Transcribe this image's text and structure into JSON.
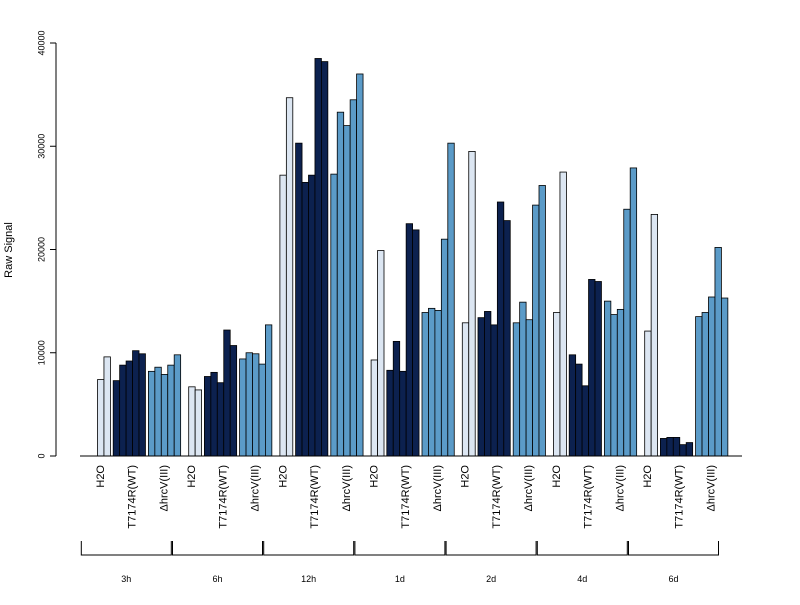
{
  "chart_data": {
    "type": "bar",
    "title": "",
    "xlabel": "",
    "ylabel": "Raw Signal",
    "ylim": [
      0,
      40000
    ],
    "yticks": [
      0,
      10000,
      20000,
      30000,
      40000
    ],
    "grid": false,
    "legend": "none",
    "timepoints": [
      "3h",
      "6h",
      "12h",
      "1d",
      "2d",
      "4d",
      "6d"
    ],
    "treatments": [
      {
        "label": "H2O",
        "color": "#dce6f2"
      },
      {
        "label": "T7174R(WT)",
        "color": "#0c214f"
      },
      {
        "label": "ΔhrcV(III)",
        "color": "#5b9bc8"
      }
    ],
    "groups": [
      {
        "time": "3h",
        "values": [
          [
            7400,
            9600
          ],
          [
            7300,
            8800,
            9200,
            10200,
            9900
          ],
          [
            8200,
            8600,
            7900,
            8800,
            9800
          ]
        ]
      },
      {
        "time": "6h",
        "values": [
          [
            6700,
            6400
          ],
          [
            7700,
            8100,
            7100,
            12200,
            10700
          ],
          [
            9400,
            10000,
            9900,
            8900,
            12700
          ]
        ]
      },
      {
        "time": "12h",
        "values": [
          [
            27200,
            34700
          ],
          [
            30300,
            26500,
            27200,
            38500,
            38200
          ],
          [
            27300,
            33300,
            32000,
            34500,
            37000
          ]
        ]
      },
      {
        "time": "1d",
        "values": [
          [
            9300,
            19900
          ],
          [
            8300,
            11100,
            8200,
            22500,
            21900
          ],
          [
            13900,
            14300,
            14100,
            21000,
            30300
          ]
        ]
      },
      {
        "time": "2d",
        "values": [
          [
            12900,
            29500
          ],
          [
            13400,
            14000,
            12700,
            24600,
            22800
          ],
          [
            12900,
            14900,
            13200,
            24300,
            26200
          ]
        ]
      },
      {
        "time": "4d",
        "values": [
          [
            13900,
            27500
          ],
          [
            9800,
            8900,
            6800,
            17100,
            16900
          ],
          [
            15000,
            13700,
            14200,
            23900,
            27900
          ]
        ]
      },
      {
        "time": "6d",
        "values": [
          [
            12100,
            23400
          ],
          [
            1700,
            1800,
            1800,
            1100,
            1300
          ],
          [
            13500,
            13900,
            15400,
            20200,
            15300
          ]
        ]
      }
    ]
  }
}
